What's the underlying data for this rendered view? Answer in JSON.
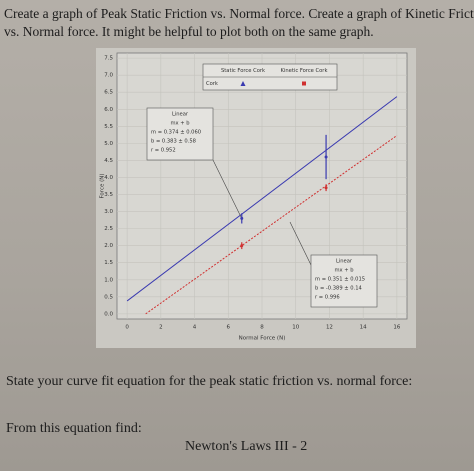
{
  "header": {
    "line1": "Create a graph of Peak Static Friction vs. Normal force.  Create a graph of Kinetic Frictio",
    "line2": "vs. Normal force.  It might be helpful to plot both on the same graph."
  },
  "chart_data": {
    "type": "scatter",
    "x_label": "Normal Force (N)",
    "y_label": "Force (N)",
    "xlim": [
      -0.6,
      16.6
    ],
    "ylim": [
      -0.15,
      7.65
    ],
    "xticks": [
      0,
      2,
      4,
      6,
      8,
      10,
      12,
      14,
      16
    ],
    "yticks": [
      {
        "value": 0,
        "label": "0.0"
      },
      0.5,
      {
        "value": 1,
        "label": "1.0"
      },
      1.5,
      {
        "value": 2,
        "label": "2.0"
      },
      2.5,
      {
        "value": 3,
        "label": "3.0"
      },
      3.5,
      {
        "value": 4,
        "label": "4.0"
      },
      4.5,
      {
        "value": 5,
        "label": "5.0"
      },
      5.5,
      {
        "value": 6,
        "label": "6.0"
      },
      6.5,
      {
        "value": 7,
        "label": "7.0"
      },
      7.5
    ],
    "grid": true,
    "legend_row": "Cork",
    "series": [
      {
        "name": "Static Force Cork",
        "color": "#3a3ab0",
        "x": [
          6.8,
          11.8
        ],
        "values": [
          2.8,
          4.6
        ],
        "errors": [
          0.15,
          0.65
        ],
        "fit": {
          "x": [
            0,
            16
          ],
          "values": [
            0.38,
            6.37
          ]
        },
        "annotation": [
          "Linear",
          "mx + b",
          "m = 0.374 ± 0.060",
          "b = 0.383 ± 0.58",
          "r = 0.952"
        ]
      },
      {
        "name": "Kinetic Force Cork",
        "color": "#d03030",
        "x": [
          6.8,
          11.8
        ],
        "values": [
          2.0,
          3.7
        ],
        "errors": [
          0.1,
          0.1
        ],
        "fit": {
          "x": [
            1.1,
            16
          ],
          "values": [
            0.0,
            5.23
          ]
        },
        "annotation": [
          "Linear",
          "mx + b",
          "m = 0.351 ± 0.015",
          "b = -0.389 ± 0.14",
          "r = 0.996"
        ]
      }
    ]
  },
  "questions": {
    "q1": "State your curve fit equation for the peak static friction vs. normal force:",
    "q2": "From this equation find:"
  },
  "footer": "Newton's Laws III - 2"
}
